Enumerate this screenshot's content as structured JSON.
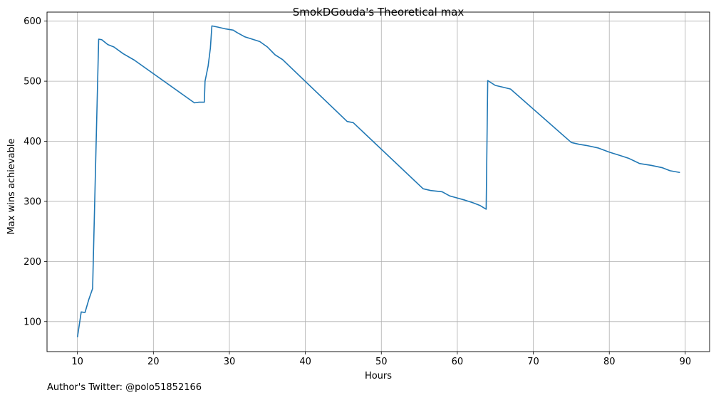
{
  "footer": {
    "note": "Author's Twitter: @polo51852166"
  },
  "chart_data": {
    "type": "line",
    "title": "SmokDGouda's Theoretical max",
    "xlabel": "Hours",
    "ylabel": "Max wins achievable",
    "xlim": [
      6,
      93.2
    ],
    "ylim": [
      50,
      615
    ],
    "xticks": [
      10,
      20,
      30,
      40,
      50,
      60,
      70,
      80,
      90
    ],
    "yticks": [
      100,
      200,
      300,
      400,
      500,
      600
    ],
    "grid": true,
    "line_color": "#1f77b4",
    "series": [
      {
        "x": [
          10.0,
          10.5,
          11.0,
          11.5,
          12.0,
          12.5,
          12.8,
          13.2,
          14.0,
          14.8,
          16.0,
          17.5,
          25.4,
          26.0,
          26.7,
          26.8,
          27.2,
          27.5,
          27.7,
          28.5,
          29.5,
          30.5,
          31.0,
          32.0,
          33.0,
          34.0,
          35.0,
          36.0,
          37.0,
          45.5,
          46.3,
          55.5,
          56.5,
          58.0,
          59.0,
          61.0,
          62.0,
          63.0,
          63.8,
          64.0,
          65.0,
          66.0,
          67.0,
          75.0,
          76.0,
          77.0,
          78.5,
          80.0,
          81.5,
          82.5,
          84.0,
          85.5,
          87.0,
          88.0,
          89.3
        ],
        "y": [
          74,
          116,
          115,
          137,
          155,
          415,
          570,
          569,
          561,
          557,
          546,
          535,
          464,
          465,
          465,
          500,
          525,
          555,
          592,
          590,
          587,
          585,
          581,
          574,
          570,
          566,
          557,
          544,
          536,
          433,
          431,
          321,
          318,
          316,
          309,
          302,
          298,
          293,
          287,
          501,
          493,
          490,
          487,
          398,
          395,
          393,
          389,
          382,
          376,
          372,
          363,
          360,
          356,
          351,
          348
        ]
      }
    ]
  }
}
